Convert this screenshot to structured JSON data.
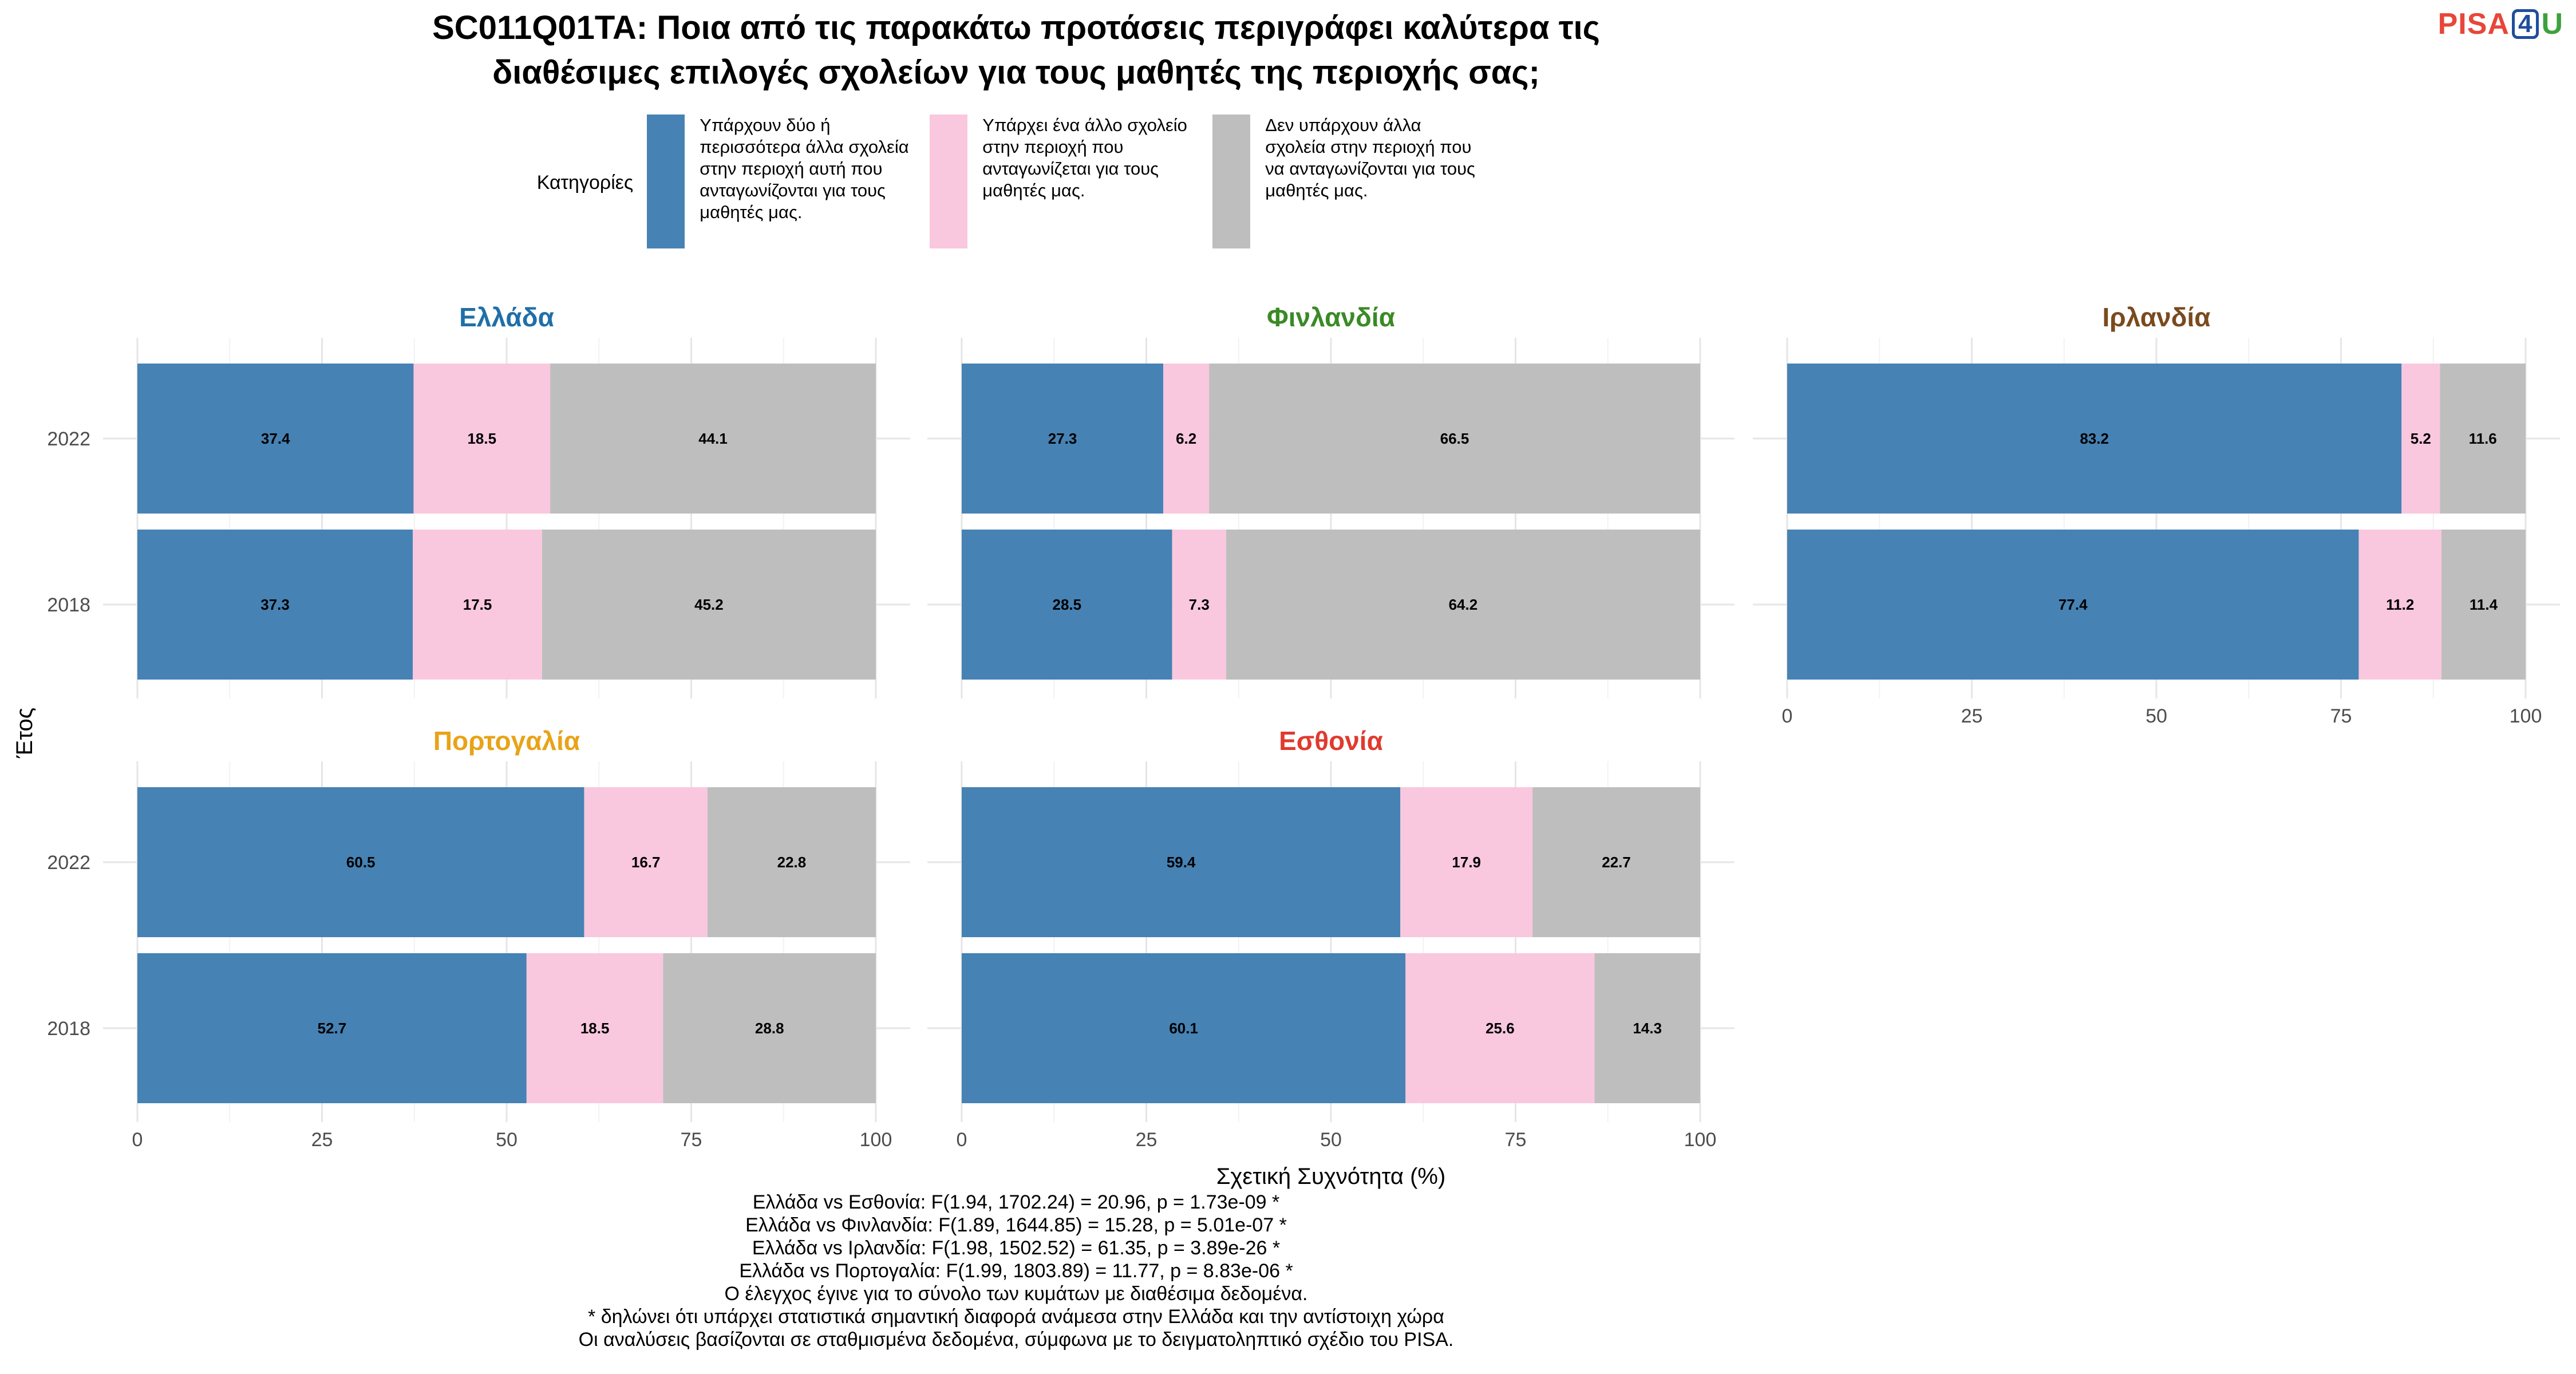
{
  "title_lines": [
    "SC011Q01TA: Ποια από τις παρακάτω προτάσεις περιγράφει καλύτερα τις",
    "διαθέσιμες επιλογές σχολείων για τους μαθητές της περιοχής σας;"
  ],
  "logo": {
    "part1": "PISA",
    "part2": "4",
    "part3": "U"
  },
  "chart_data": {
    "type": "bar",
    "orientation": "horizontal",
    "stacked": true,
    "xlabel": "Σχετική Συχνότητα (%)",
    "ylabel": "Έτος",
    "xlim": [
      0,
      100
    ],
    "xticks": [
      0,
      25,
      50,
      75,
      100
    ],
    "categories": [
      "2022",
      "2018"
    ],
    "legend": {
      "title": "Κατηγορίες",
      "position": "top",
      "entries": [
        {
          "label": "Υπάρχουν δύο ή περισσότερα άλλα σχολεία στην περιοχή αυτή που ανταγωνίζονται για τους μαθητές μας.",
          "color": "#4682b4"
        },
        {
          "label": "Υπάρχει ένα άλλο σχολείο στην περιοχή που ανταγωνίζεται για τους μαθητές μας.",
          "color": "#f9c8de"
        },
        {
          "label": "Δεν υπάρχουν άλλα σχολεία στην περιοχή που να ανταγωνίζονται για τους μαθητές μας.",
          "color": "#bebebe"
        }
      ]
    },
    "panels": [
      {
        "name": "Ελλάδα",
        "color": "#1f6fa8",
        "show_x_axis": false,
        "values": {
          "2022": [
            37.4,
            18.5,
            44.1
          ],
          "2018": [
            37.3,
            17.5,
            45.2
          ]
        }
      },
      {
        "name": "Φινλανδία",
        "color": "#3a8a26",
        "show_x_axis": false,
        "values": {
          "2022": [
            27.3,
            6.2,
            66.5
          ],
          "2018": [
            28.5,
            7.3,
            64.2
          ]
        }
      },
      {
        "name": "Ιρλανδία",
        "color": "#7a4a1e",
        "show_x_axis": true,
        "values": {
          "2022": [
            83.2,
            5.2,
            11.6
          ],
          "2018": [
            77.4,
            11.2,
            11.4
          ]
        }
      },
      {
        "name": "Πορτογαλία",
        "color": "#e8a317",
        "show_x_axis": true,
        "values": {
          "2022": [
            60.5,
            16.7,
            22.8
          ],
          "2018": [
            52.7,
            18.5,
            28.8
          ]
        }
      },
      {
        "name": "Εσθονία",
        "color": "#e03a2e",
        "show_x_axis": true,
        "values": {
          "2022": [
            59.4,
            17.9,
            22.7
          ],
          "2018": [
            60.1,
            25.6,
            14.3
          ]
        }
      }
    ]
  },
  "footnotes": [
    "Ελλάδα vs Εσθονία: F(1.94, 1702.24) = 20.96, p = 1.73e-09 *",
    "Ελλάδα vs Φινλανδία: F(1.89, 1644.85) = 15.28, p = 5.01e-07 *",
    "Ελλάδα vs Ιρλανδία: F(1.98, 1502.52) = 61.35, p = 3.89e-26 *",
    "Ελλάδα vs Πορτογαλία: F(1.99, 1803.89) = 11.77, p = 8.83e-06 *",
    "Ο έλεγχος έγινε για το σύνολο των κυμάτων με διαθέσιμα δεδομένα.",
    "* δηλώνει ότι υπάρχει στατιστικά σημαντική διαφορά ανάμεσα στην Ελλάδα και την αντίστοιχη χώρα",
    "Οι αναλύσεις βασίζονται σε σταθμισμένα δεδομένα, σύμφωνα με το δειγματοληπτικό σχέδιο του PISA."
  ]
}
